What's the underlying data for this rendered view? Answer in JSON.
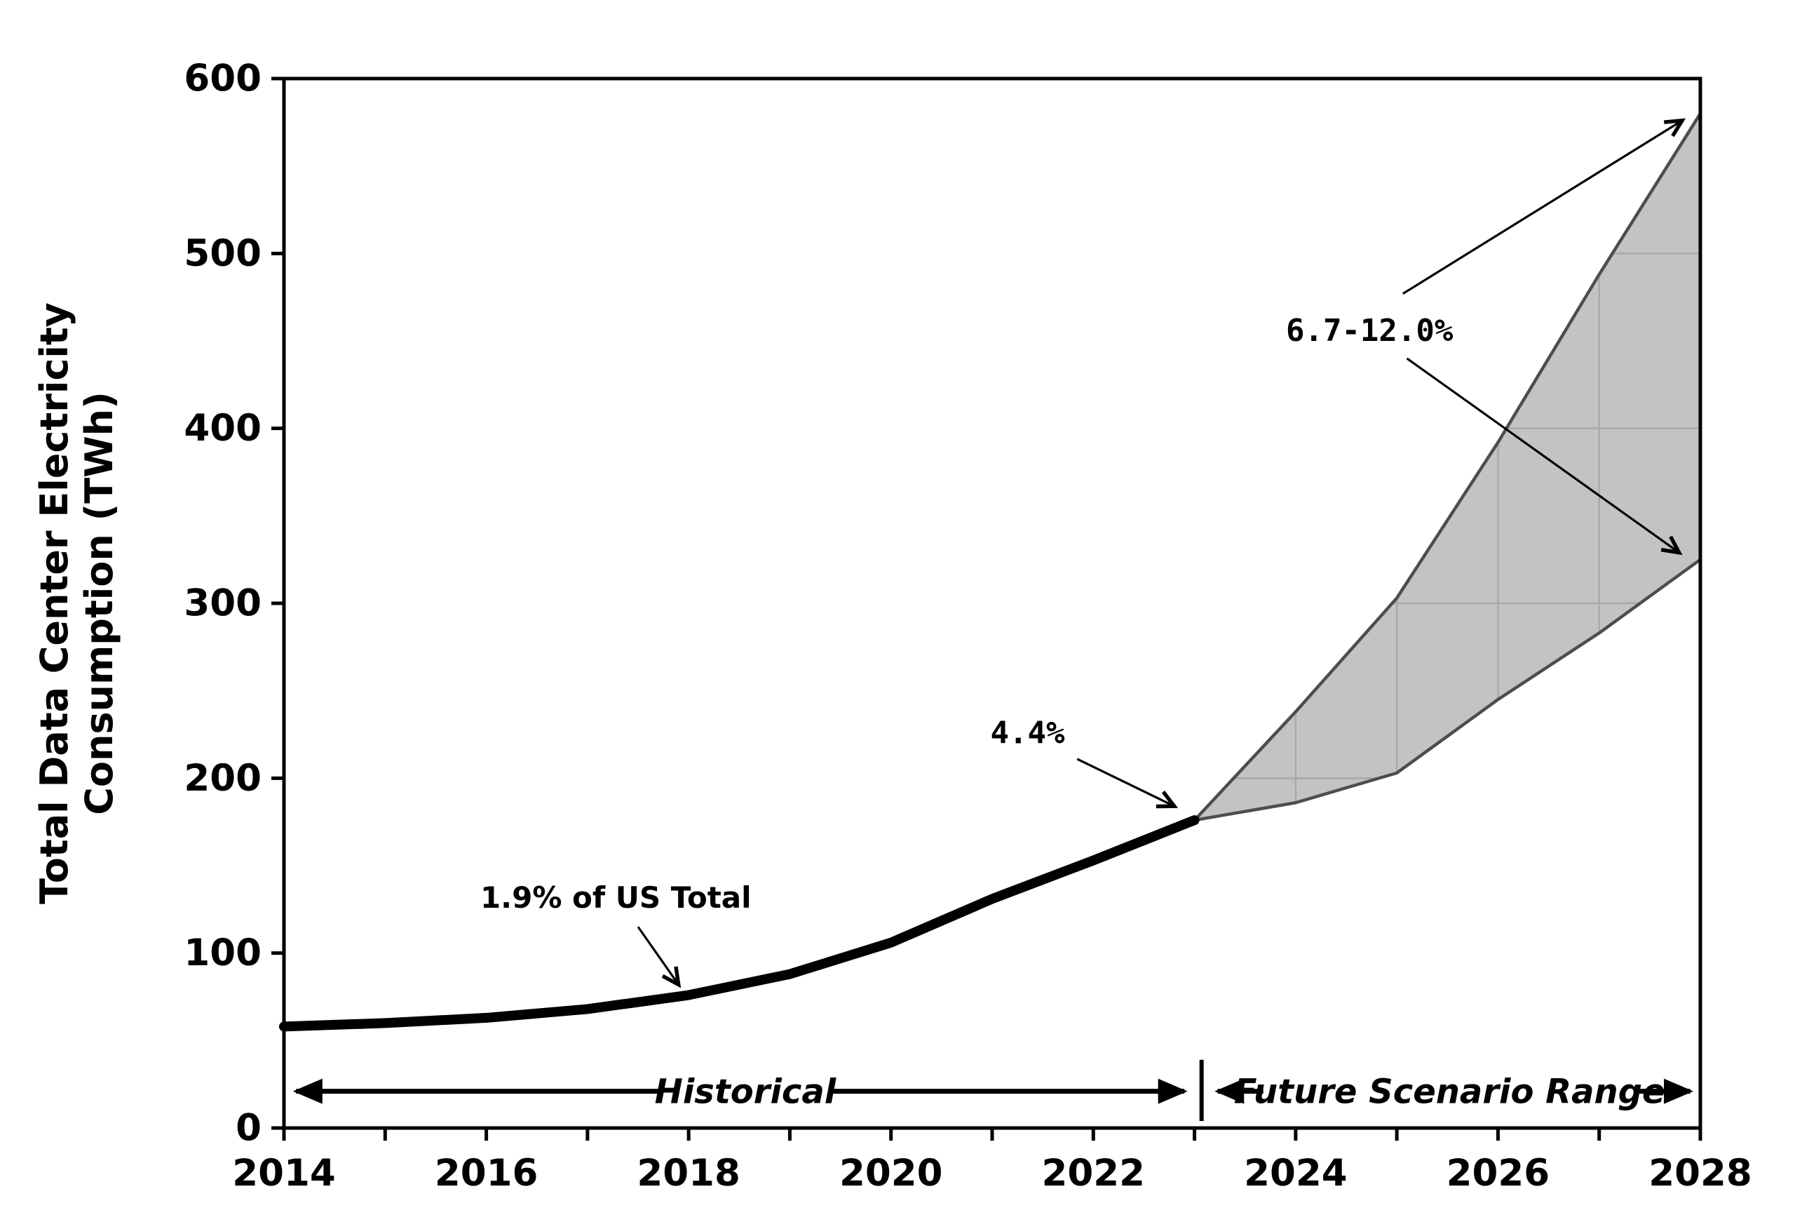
{
  "figure": {
    "background": "#ffffff",
    "axis_color": "#000000",
    "text_color": "#000000"
  },
  "chart_data": {
    "type": "line",
    "title": "",
    "xlabel": "",
    "ylabel_lines": [
      "Total Data Center Electricity",
      "Consumption (TWh)"
    ],
    "xlim": [
      2014,
      2028
    ],
    "ylim": [
      0,
      600
    ],
    "x_tick_years": [
      2014,
      2015,
      2016,
      2017,
      2018,
      2019,
      2020,
      2021,
      2022,
      2023,
      2024,
      2025,
      2026,
      2027,
      2028
    ],
    "x_tick_labels": [
      "2014",
      "2016",
      "2018",
      "2020",
      "2022",
      "2024",
      "2026",
      "2028"
    ],
    "y_ticks": [
      0,
      100,
      200,
      300,
      400,
      500,
      600
    ],
    "grid": "inside-band-only",
    "legend": "none",
    "series": [
      {
        "name": "Historical",
        "x": [
          2014,
          2015,
          2016,
          2017,
          2018,
          2019,
          2020,
          2021,
          2022,
          2023
        ],
        "values": [
          58,
          60,
          63,
          68,
          76,
          88,
          106,
          131,
          153,
          176
        ],
        "color": "#000000",
        "width": 14
      },
      {
        "name": "Future scenario upper bound",
        "x": [
          2023,
          2024,
          2025,
          2026,
          2027,
          2028
        ],
        "values": [
          176,
          238,
          303,
          392,
          488,
          580
        ],
        "color": "#4d4d4d",
        "width": 4.5
      },
      {
        "name": "Future scenario lower bound",
        "x": [
          2023,
          2024,
          2025,
          2026,
          2027,
          2028
        ],
        "values": [
          176,
          186,
          203,
          245,
          283,
          325
        ],
        "color": "#4d4d4d",
        "width": 4.5
      }
    ],
    "band": {
      "fill": "#c3c3c3",
      "edge_color": "#4d4d4d",
      "grid_color": "#a9a9a9",
      "grid_x_years": [
        2024,
        2025,
        2026,
        2027
      ],
      "grid_y_values": [
        200,
        300,
        400,
        500
      ]
    },
    "annotations": [
      {
        "id": "pct-1-9",
        "text": "1.9% of US Total",
        "style": "sans",
        "at": {
          "year": 2017.28,
          "value": 132
        },
        "arrow": {
          "from": {
            "year": 2017.5,
            "value": 115
          },
          "to": {
            "year": 2017.9,
            "value": 82
          }
        }
      },
      {
        "id": "pct-4-4",
        "text": "4.4%",
        "style": "mono",
        "at": {
          "year": 2021.35,
          "value": 226
        },
        "arrow": {
          "from": {
            "year": 2021.84,
            "value": 211
          },
          "to": {
            "year": 2022.8,
            "value": 184
          }
        }
      },
      {
        "id": "pct-6-7-12",
        "text": "6.7-12.0%",
        "style": "mono",
        "at": {
          "year": 2024.73,
          "value": 456
        },
        "arrows": [
          {
            "from": {
              "year": 2025.06,
              "value": 477
            },
            "to": {
              "year": 2027.82,
              "value": 576
            }
          },
          {
            "from": {
              "year": 2025.1,
              "value": 440
            },
            "to": {
              "year": 2027.79,
              "value": 329
            }
          }
        ]
      },
      {
        "id": "span-historical",
        "text": "Historical",
        "style": "span",
        "value": 21,
        "label_year": 2018.56,
        "left_tip": 2014.12,
        "left_end": 2017.7,
        "right_start": 2019.4,
        "right_tip": 2022.9
      },
      {
        "id": "span-future",
        "text": "Future Scenario Range",
        "style": "span",
        "value": 21,
        "label_year": 2025.52,
        "left_tip": 2023.23,
        "left_end": 2023.68,
        "right_start": 2027.35,
        "right_tip": 2027.9
      },
      {
        "id": "span-separator",
        "year": 2023.07,
        "value_top": 39,
        "value_bottom": 4
      }
    ]
  }
}
